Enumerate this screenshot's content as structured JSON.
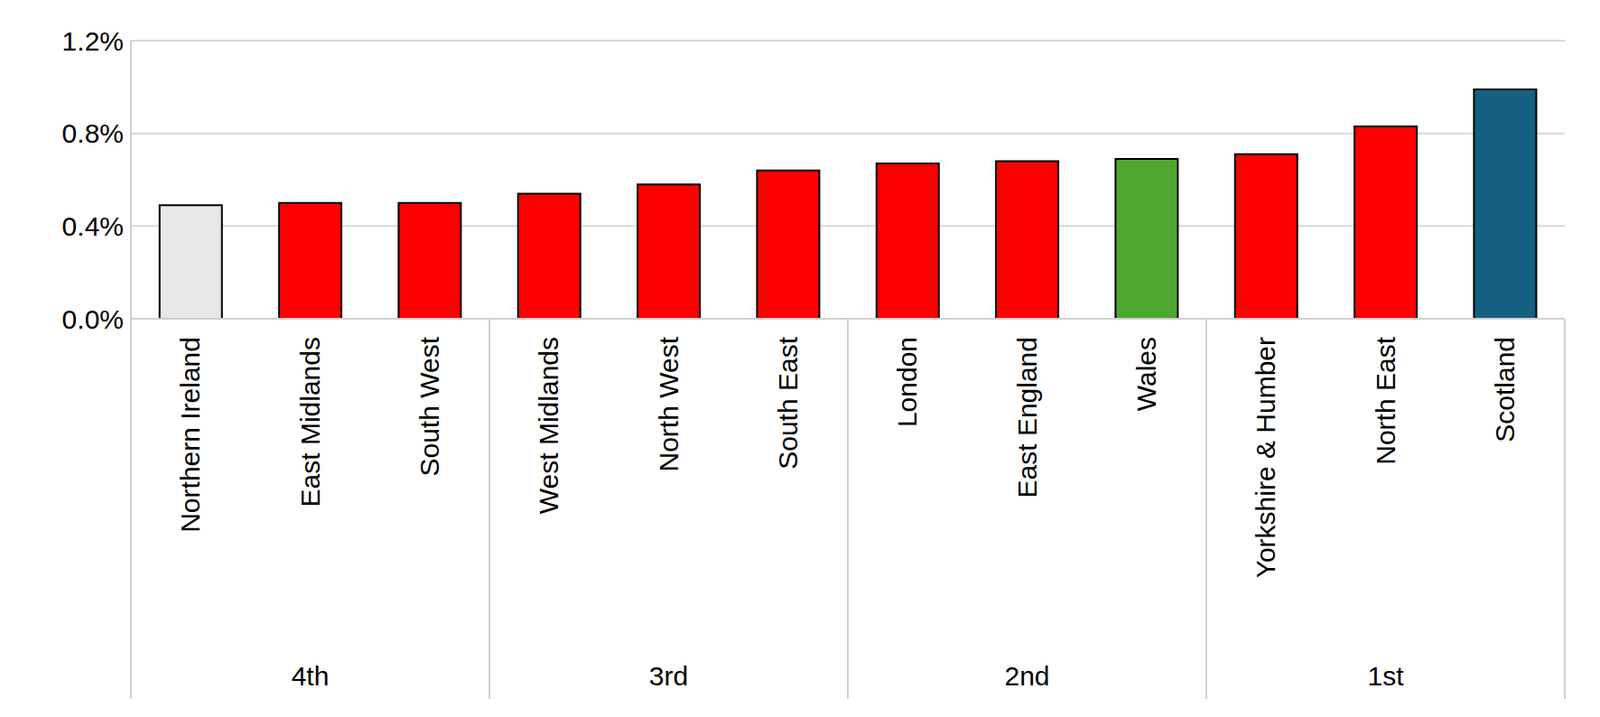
{
  "chart_data": {
    "type": "bar",
    "categories": [
      "Northern Ireland",
      "East Midlands",
      "South West",
      "West Midlands",
      "North West",
      "South East",
      "London",
      "East England",
      "Wales",
      "Yorkshire & Humber",
      "North East",
      "Scotland"
    ],
    "values": [
      0.49,
      0.5,
      0.5,
      0.54,
      0.58,
      0.64,
      0.67,
      0.68,
      0.69,
      0.71,
      0.83,
      0.99
    ],
    "colors": [
      "#e8e8e8",
      "#ff0000",
      "#ff0000",
      "#ff0000",
      "#ff0000",
      "#ff0000",
      "#ff0000",
      "#ff0000",
      "#4ea72e",
      "#ff0000",
      "#ff0000",
      "#156082"
    ],
    "groups": [
      {
        "label": "4th",
        "categories": [
          "Northern Ireland",
          "East Midlands",
          "South West"
        ]
      },
      {
        "label": "3rd",
        "categories": [
          "West Midlands",
          "North West",
          "South East"
        ]
      },
      {
        "label": "2nd",
        "categories": [
          "London",
          "East England",
          "Wales"
        ]
      },
      {
        "label": "1st",
        "categories": [
          "Yorkshire & Humber",
          "North East",
          "Scotland"
        ]
      }
    ],
    "ylim": [
      0,
      1.2
    ],
    "yticks": [
      {
        "value": 0,
        "label": "0.0%"
      },
      {
        "value": 0.4,
        "label": "0.4%"
      },
      {
        "value": 0.8,
        "label": "0.8%"
      },
      {
        "value": 1.2,
        "label": "1.2%"
      }
    ],
    "grid": true
  }
}
